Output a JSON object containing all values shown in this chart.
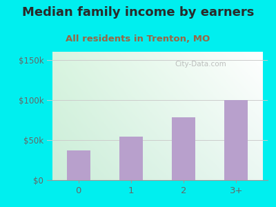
{
  "title": "Median family income by earners",
  "subtitle": "All residents in Trenton, MO",
  "categories": [
    "0",
    "1",
    "2",
    "3+"
  ],
  "values": [
    37000,
    54000,
    78000,
    100000
  ],
  "bar_color": "#b8a0cc",
  "outer_bg": "#00efef",
  "title_color": "#2a2a2a",
  "subtitle_color": "#996644",
  "yticks": [
    0,
    50000,
    100000,
    150000
  ],
  "ytick_labels": [
    "$0",
    "$50k",
    "$100k",
    "$150k"
  ],
  "ylim": [
    0,
    160000
  ],
  "title_fontsize": 13,
  "subtitle_fontsize": 9.5,
  "axis_label_color": "#666666",
  "watermark": "City-Data.com",
  "grid_color": "#cccccc"
}
